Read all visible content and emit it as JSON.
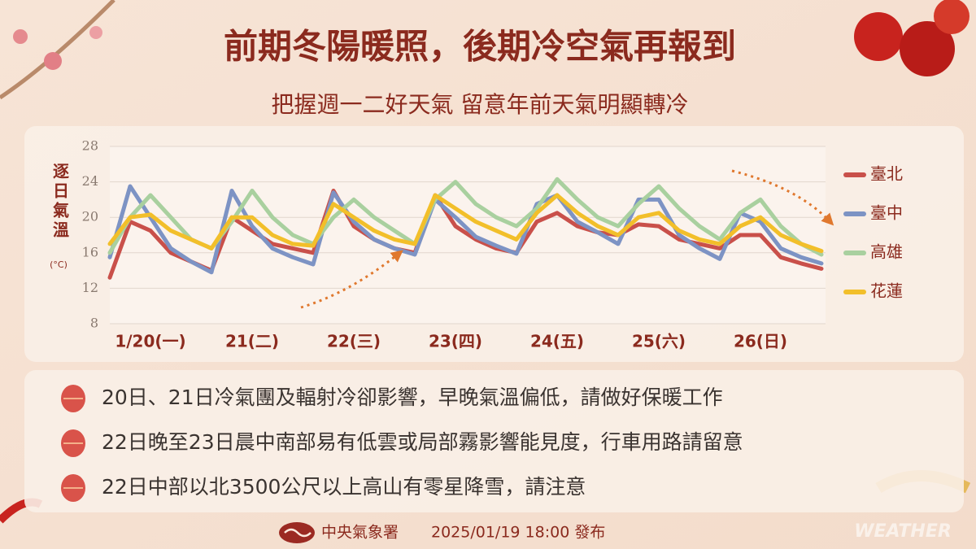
{
  "header": {
    "title": "前期冬陽暖照，後期冷空氣再報到",
    "subtitle": "把握週一二好天氣  留意年前天氣明顯轉冷"
  },
  "chart_data": {
    "type": "line",
    "y_label": "逐日氣溫",
    "y_unit": "(°C)",
    "categories": [
      null,
      null,
      "1/20(一)",
      null,
      null,
      null,
      null,
      "21(二)",
      null,
      null,
      null,
      null,
      "22(三)",
      null,
      null,
      null,
      null,
      "23(四)",
      null,
      null,
      null,
      null,
      "24(五)",
      null,
      null,
      null,
      null,
      "25(六)",
      null,
      null,
      null,
      null,
      "26(日)",
      null,
      null,
      null
    ],
    "series": [
      {
        "name": "臺北",
        "color": "#c9504a",
        "values": [
          13.2,
          19.5,
          18.5,
          16,
          15,
          14,
          20,
          18.5,
          17,
          16.5,
          16,
          23,
          19,
          17.5,
          16.5,
          16,
          22.5,
          19,
          17.5,
          16.5,
          16,
          19.5,
          20.5,
          19,
          18.3,
          18,
          19.2,
          19,
          17.5,
          17,
          16.5,
          18,
          18,
          15.5,
          14.8,
          14.2
        ]
      },
      {
        "name": "臺中",
        "color": "#7d93c4",
        "values": [
          15.5,
          23.5,
          20,
          16.5,
          15,
          13.8,
          23,
          19,
          16.5,
          15.5,
          14.7,
          22.8,
          19.5,
          17.5,
          16.5,
          15.8,
          22,
          20,
          17.8,
          16.8,
          15.9,
          21.5,
          22.5,
          19.5,
          18.3,
          17,
          22,
          22,
          18,
          16.5,
          15.3,
          20.5,
          19.5,
          16.5,
          15.5,
          14.8
        ]
      },
      {
        "name": "高雄",
        "color": "#a9d09f",
        "values": [
          16,
          20,
          22.5,
          20,
          17.5,
          16.5,
          19.5,
          23,
          20,
          18,
          17,
          20,
          22,
          20,
          18.5,
          17,
          22,
          24,
          21.5,
          20,
          19,
          21,
          24.3,
          22,
          20,
          19,
          21.5,
          23.5,
          21,
          19,
          17.5,
          20.5,
          22,
          19,
          17,
          15.8
        ]
      },
      {
        "name": "花蓮",
        "color": "#f2bf2a",
        "values": [
          17,
          20,
          20.3,
          18.5,
          17.5,
          16.5,
          20,
          20,
          18,
          17,
          16.8,
          21.5,
          20,
          18.5,
          17.5,
          17,
          22.5,
          21,
          19.5,
          18.5,
          17.5,
          20.5,
          22.5,
          20.5,
          19,
          18,
          20,
          20.5,
          18.5,
          17.5,
          17,
          19,
          20,
          18,
          17,
          16.2
        ]
      }
    ],
    "ylim": [
      8,
      28
    ],
    "yticks": [
      8,
      12,
      16,
      20,
      24,
      28
    ],
    "grid": true
  },
  "notes": [
    "20日、21日冷氣團及輻射冷卻影響，早晚氣溫偏低，請做好保暖工作",
    "22日晚至23日晨中南部易有低雲或局部霧影響能見度，行車用路請留意",
    "22日中部以北3500公尺以上高山有零星降雪，請注意"
  ],
  "footer": {
    "agency": "中央氣象署",
    "issued": "2025/01/19 18:00 發布"
  },
  "watermark": "WEATHER"
}
